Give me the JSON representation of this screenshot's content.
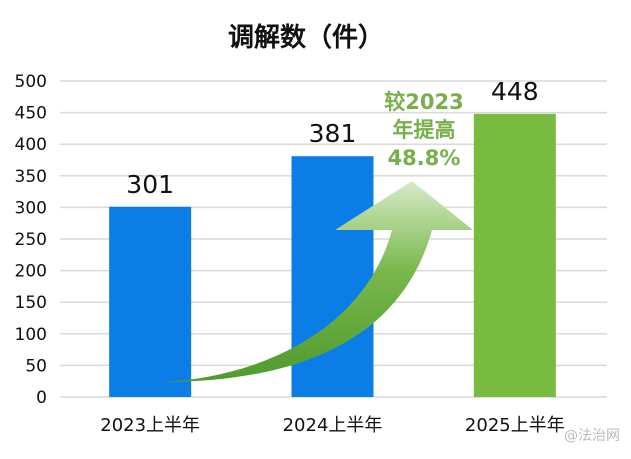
{
  "chart_data": {
    "type": "bar",
    "title": "调解数（件）",
    "categories": [
      "2023上半年",
      "2024上半年",
      "2025上半年"
    ],
    "values": [
      301,
      381,
      448
    ],
    "bar_colors": [
      "#0a7ee6",
      "#0a7ee6",
      "#77bb41"
    ],
    "ylim": [
      0,
      500
    ],
    "yticks": [
      0,
      50,
      100,
      150,
      200,
      250,
      300,
      350,
      400,
      450,
      500
    ],
    "grid": true,
    "annotation": {
      "lines": [
        "较2023",
        "年提高",
        "48.8%"
      ],
      "color": "#77b04a"
    },
    "xlabel": "",
    "ylabel": ""
  },
  "watermark": "@法治网"
}
